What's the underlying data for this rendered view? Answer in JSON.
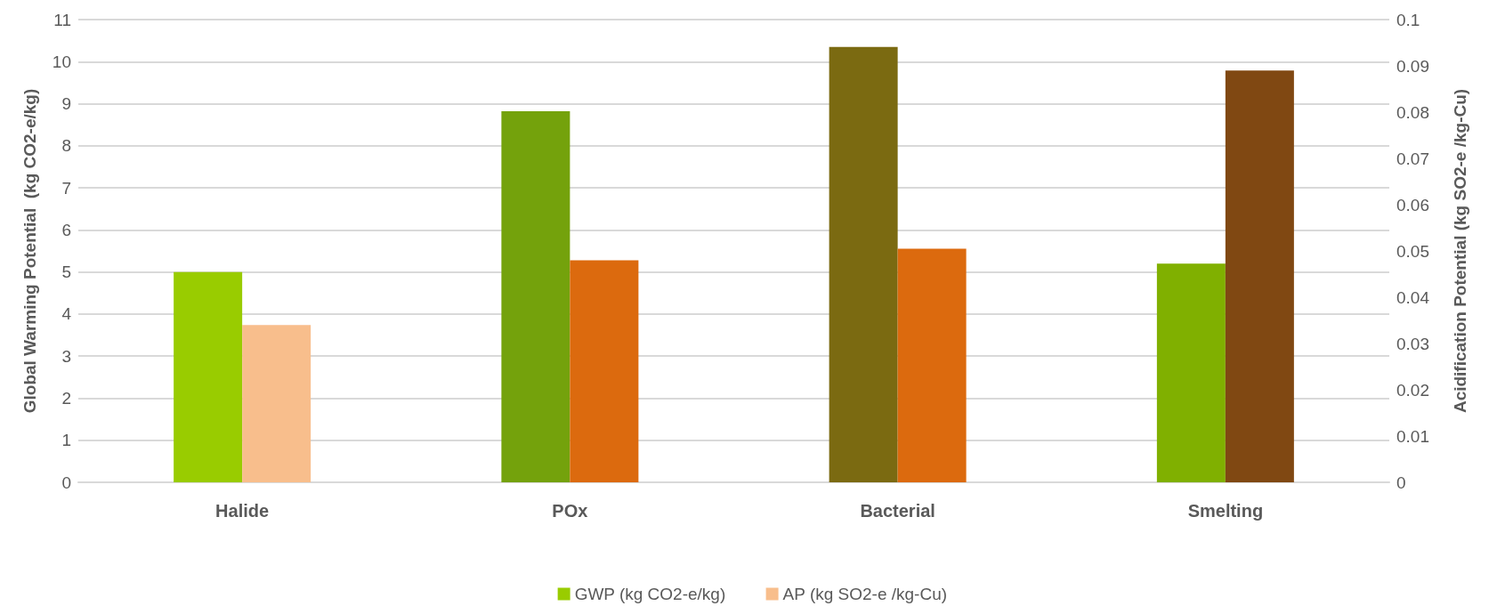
{
  "chart_data": {
    "type": "bar",
    "categories": [
      "Halide",
      "POx",
      "Bacterial",
      "Smelting"
    ],
    "ylabel": "Global Warming Potential  (kg CO2-e/kg)",
    "y2label": "Acidification Potential (kg SO2-e /kg-Cu)",
    "series": [
      {
        "name": "GWP (kg CO2-e/kg)",
        "color": "#99cc00",
        "colors": [
          "#99cc00",
          "#74a20c",
          "#7b6a11",
          "#80b000"
        ],
        "values": [
          5.0,
          8.82,
          10.35,
          5.2
        ]
      },
      {
        "name": "AP (kg SO2-e /kg-Cu)",
        "color": "#f8be8c",
        "colors": [
          "#f8be8c",
          "#dc6a0e",
          "#dc6a0e",
          "#804812"
        ],
        "values": [
          0.034,
          0.048,
          0.0505,
          0.089
        ],
        "axis": "y2"
      }
    ],
    "ylim": [
      0,
      11
    ],
    "yticks": [
      0,
      1,
      2,
      3,
      4,
      5,
      6,
      7,
      8,
      9,
      10,
      11
    ],
    "y2lim": [
      0,
      0.1
    ],
    "y2ticks": [
      0,
      0.01,
      0.02,
      0.03,
      0.04,
      0.05,
      0.06,
      0.07,
      0.08,
      0.09,
      0.1
    ],
    "grid": "y",
    "legend": "bottom"
  }
}
